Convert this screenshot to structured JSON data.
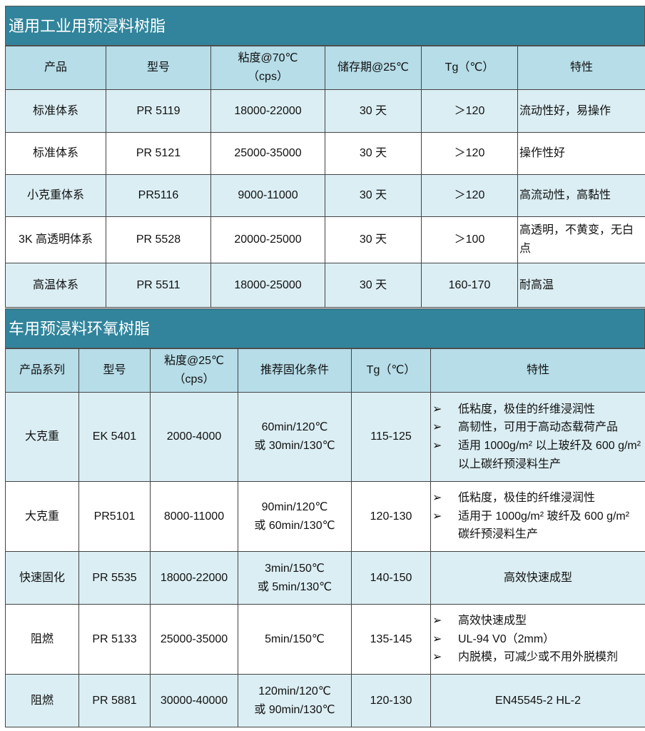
{
  "table1": {
    "title": "通用工业用预浸料树脂",
    "headers": [
      "产品",
      "型号",
      "粘度@70℃\n（cps）",
      "储存期@25℃",
      "Tg（℃）",
      "特性"
    ],
    "rows": [
      [
        "标准体系",
        "PR 5119",
        "18000-22000",
        "30 天",
        "＞120",
        "流动性好，易操作"
      ],
      [
        "标准体系",
        "PR 5121",
        "25000-35000",
        "30 天",
        "＞120",
        "操作性好"
      ],
      [
        "小克重体系",
        "PR5116",
        "9000-11000",
        "30 天",
        "＞120",
        "高流动性，高黏性"
      ],
      [
        "3K 高透明体系",
        "PR 5528",
        "20000-25000",
        "30 天",
        "＞100",
        "高透明，不黄变，无白点"
      ],
      [
        "高温体系",
        "PR 5511",
        "18000-25000",
        "30 天",
        "160-170",
        "耐高温"
      ]
    ]
  },
  "table2": {
    "title": "车用预浸料环氧树脂",
    "headers": [
      "产品系列",
      "型号",
      "粘度@25℃\n（cps）",
      "推荐固化条件",
      "Tg（℃）",
      "特性"
    ],
    "rows": [
      {
        "cells": [
          "大克重",
          "EK 5401",
          "2000-4000",
          "60min/120℃\n或 30min/130℃",
          "115-125"
        ],
        "bullets": [
          "低粘度，极佳的纤维浸润性",
          "高韧性，可用于高动态载荷产品",
          "适用 1000g/m² 以上玻纤及 600 g/m² 以上碳纤预浸料生产"
        ]
      },
      {
        "cells": [
          "大克重",
          "PR5101",
          "8000-11000",
          "90min/120℃\n或 60min/130℃",
          "120-130"
        ],
        "bullets": [
          "低粘度，极佳的纤维浸润性",
          "适用于 1000g/m² 玻纤及 600 g/m² 碳纤预浸料生产"
        ]
      },
      {
        "cells": [
          "快速固化",
          "PR 5535",
          "18000-22000",
          "3min/150℃\n或 5min/130℃",
          "140-150"
        ],
        "feature": "高效快速成型"
      },
      {
        "cells": [
          "阻燃",
          "PR 5133",
          "25000-35000",
          "5min/150℃",
          "135-145"
        ],
        "bullets": [
          "高效快速成型",
          "UL-94 V0（2mm）",
          "内脱模，可减少或不用外脱模剂"
        ]
      },
      {
        "cells": [
          "阻燃",
          "PR 5881",
          "30000-40000",
          "120min/120℃\n或 90min/130℃",
          "120-130"
        ],
        "feature": "EN45545-2 HL-2"
      }
    ],
    "bullet_glyph": "➢"
  },
  "colors": {
    "title_bg": "#31849b",
    "header_bg": "#b6dde8",
    "row_light": "#dbeef3"
  }
}
